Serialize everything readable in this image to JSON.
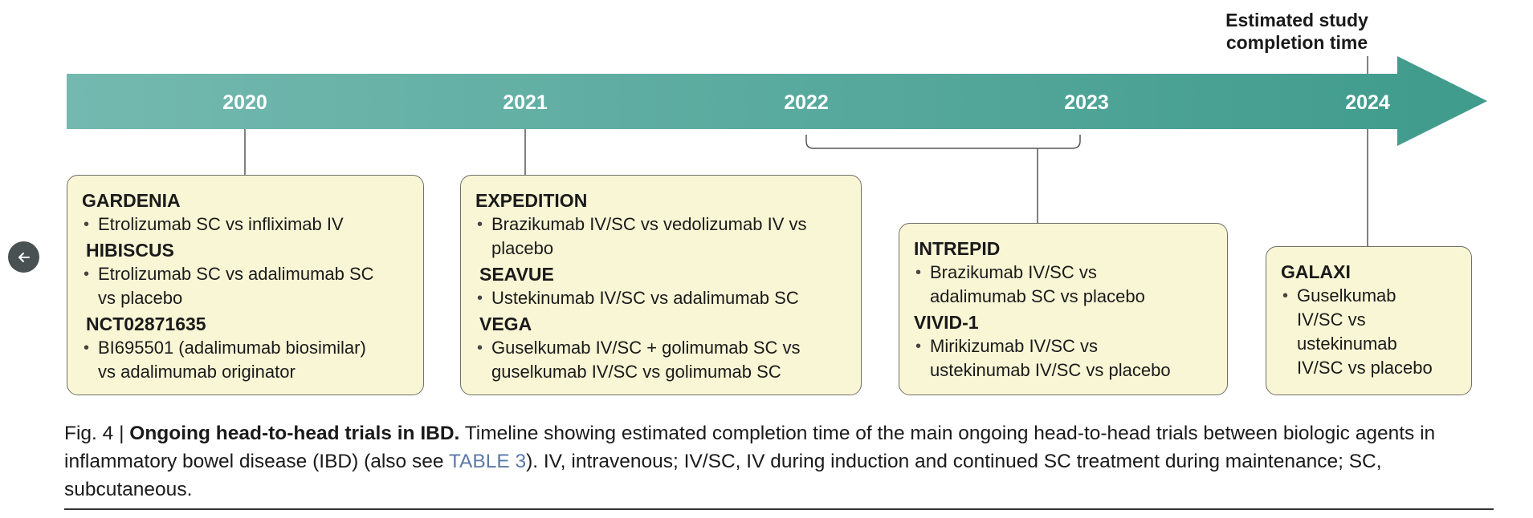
{
  "timeline": {
    "years": [
      "2020",
      "2021",
      "2022",
      "2023",
      "2024"
    ],
    "completion_label_line1": "Estimated study",
    "completion_label_line2": "completion time"
  },
  "groups": [
    {
      "trials": [
        {
          "name": "GARDENIA",
          "desc": [
            "Etrolizumab SC vs infliximab IV"
          ]
        },
        {
          "name": "HIBISCUS",
          "desc": [
            "Etrolizumab SC vs adalimumab SC",
            "vs placebo"
          ]
        },
        {
          "name": "NCT02871635",
          "desc": [
            "BI695501 (adalimumab biosimilar)",
            "vs adalimumab originator"
          ]
        }
      ]
    },
    {
      "trials": [
        {
          "name": "EXPEDITION",
          "desc": [
            "Brazikumab IV/SC vs vedolizumab IV vs",
            "placebo"
          ]
        },
        {
          "name": "SEAVUE",
          "desc": [
            "Ustekinumab IV/SC vs adalimumab SC"
          ]
        },
        {
          "name": "VEGA",
          "desc": [
            "Guselkumab IV/SC + golimumab SC vs",
            "guselkumab IV/SC vs golimumab SC"
          ]
        }
      ]
    },
    {
      "trials": [
        {
          "name": "INTREPID",
          "desc": [
            "Brazikumab IV/SC vs",
            "adalimumab SC vs placebo"
          ]
        },
        {
          "name": "VIVID-1",
          "desc": [
            "Mirikizumab IV/SC vs",
            "ustekinumab IV/SC vs placebo"
          ]
        }
      ]
    },
    {
      "trials": [
        {
          "name": "GALAXI",
          "desc": [
            "Guselkumab",
            "IV/SC vs",
            "ustekinumab",
            "IV/SC vs placebo"
          ]
        }
      ]
    }
  ],
  "caption": {
    "prefix": "Fig. 4 | ",
    "title": "Ongoing head-to-head trials in IBD.",
    "text1": " Timeline showing estimated completion time of the main ongoing head-to-head trials between biologic agents in inflammatory bowel disease (IBD) (also see ",
    "link": "TABLE 3",
    "text2": "). IV, intravenous; IV/SC, IV during induction and continued SC treatment during maintenance; SC, subcutaneous."
  },
  "colors": {
    "arrow_start": "#74b9b0",
    "arrow_end": "#3f9b8c",
    "box_fill": "#f9f6d5",
    "box_border": "#6f6f68",
    "link": "#5a79a6"
  },
  "icons": {
    "back": "arrow-left-icon"
  }
}
